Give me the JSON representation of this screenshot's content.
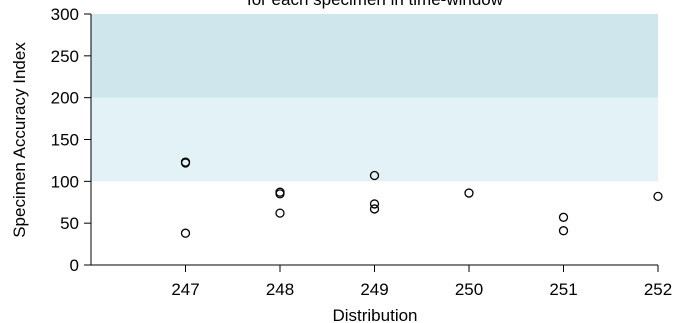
{
  "colors": {
    "band_upper": "#cfe6ec",
    "band_lower": "#e3f2f6",
    "marker": "#000000",
    "axis": "#000000"
  },
  "chart_data": {
    "type": "scatter",
    "title": "for each specimen in time-window",
    "xlabel": "Distribution",
    "ylabel": "Specimen Accuracy Index",
    "xlim": [
      246,
      252
    ],
    "ylim": [
      0,
      300
    ],
    "x_ticks": [
      247,
      248,
      249,
      250,
      251,
      252
    ],
    "y_ticks": [
      0,
      50,
      100,
      150,
      200,
      250,
      300
    ],
    "bands": [
      {
        "from": 100,
        "to": 200,
        "color": "band_lower"
      },
      {
        "from": 200,
        "to": 300,
        "color": "band_upper"
      }
    ],
    "points": [
      {
        "x": 247,
        "y": 123
      },
      {
        "x": 247,
        "y": 122
      },
      {
        "x": 247,
        "y": 38
      },
      {
        "x": 248,
        "y": 87
      },
      {
        "x": 248,
        "y": 85
      },
      {
        "x": 248,
        "y": 62
      },
      {
        "x": 249,
        "y": 107
      },
      {
        "x": 249,
        "y": 73
      },
      {
        "x": 249,
        "y": 67
      },
      {
        "x": 250,
        "y": 86
      },
      {
        "x": 251,
        "y": 57
      },
      {
        "x": 251,
        "y": 41
      },
      {
        "x": 252,
        "y": 82
      }
    ]
  }
}
